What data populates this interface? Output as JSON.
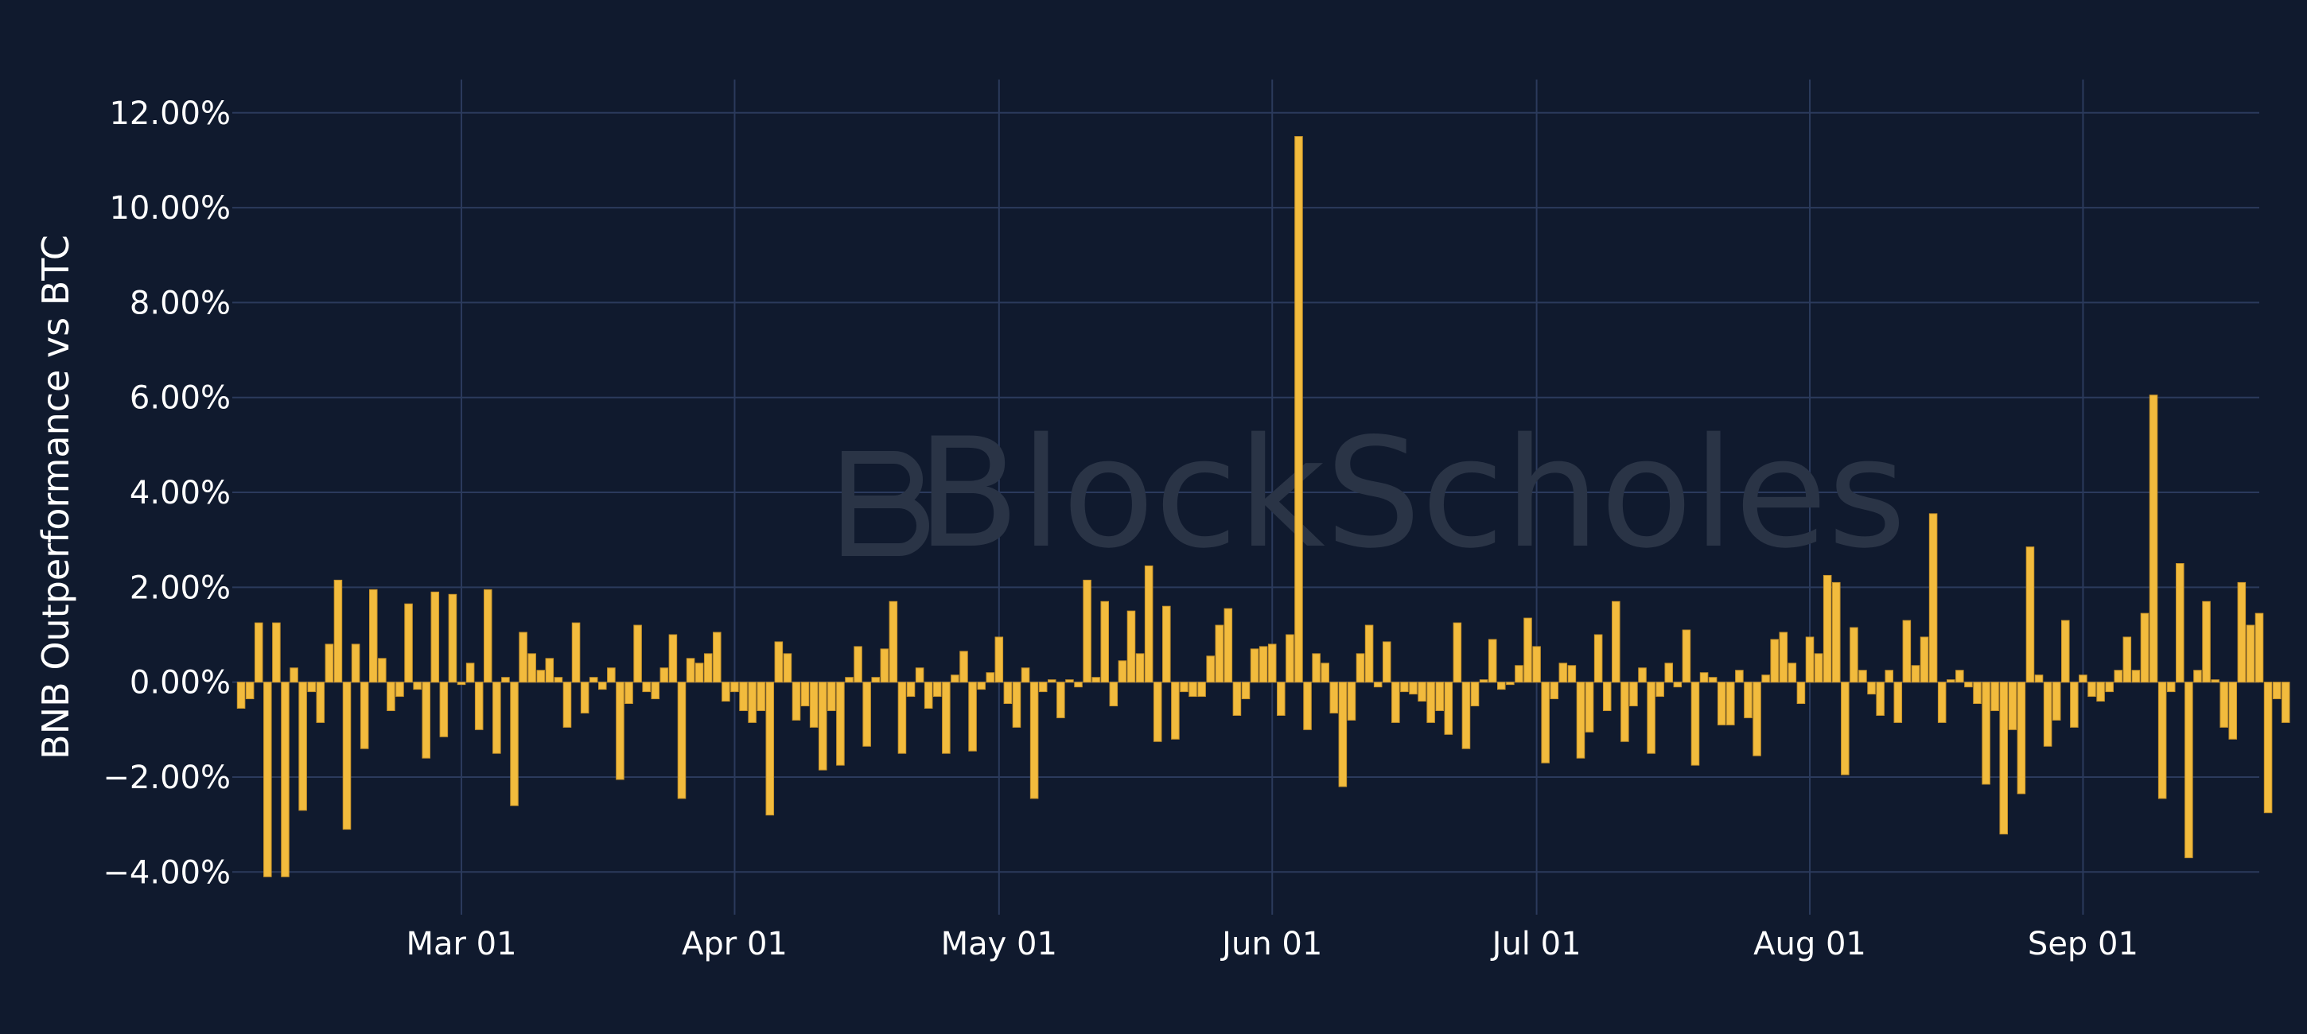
{
  "watermark": "BlockScholes",
  "colors": {
    "background": "#101a2e",
    "grid": "#2b3a5c",
    "bar": "#f2bb3d",
    "bar_edge": "#c9942a"
  },
  "chart_data": {
    "type": "bar",
    "title": "",
    "xlabel": "",
    "ylabel": "BNB Outperformance vs BTC",
    "ylim": [
      -4.9,
      12.7
    ],
    "yticks": [
      -4,
      -2,
      0,
      2,
      4,
      6,
      8,
      10,
      12
    ],
    "ytick_labels": [
      "−4.00%",
      "−2.00%",
      "0.00%",
      "2.00%",
      "4.00%",
      "6.00%",
      "8.00%",
      "10.00%",
      "12.00%"
    ],
    "xlim": [
      "2023-02-03",
      "2023-09-21"
    ],
    "xticks": [
      "2023-03-01",
      "2023-04-01",
      "2023-05-01",
      "2023-06-01",
      "2023-07-01",
      "2023-08-01",
      "2023-09-01"
    ],
    "xtick_labels": [
      "Mar 01",
      "Apr 01",
      "May 01",
      "Jun 01",
      "Jul 01",
      "Aug 01",
      "Sep 01"
    ],
    "grid": true,
    "x_start": "2023-02-04",
    "values": [
      -0.55,
      -0.35,
      1.25,
      -4.1,
      1.25,
      -4.1,
      0.3,
      -2.7,
      -0.2,
      -0.85,
      0.8,
      2.15,
      -3.1,
      0.8,
      -1.4,
      1.95,
      0.5,
      -0.6,
      -0.3,
      1.65,
      -0.15,
      -1.6,
      1.9,
      -1.15,
      1.85,
      -0.05,
      0.4,
      -1.0,
      1.95,
      -1.5,
      0.1,
      -2.6,
      1.05,
      0.6,
      0.25,
      0.5,
      0.1,
      -0.95,
      1.25,
      -0.65,
      0.1,
      -0.15,
      0.3,
      -2.05,
      -0.45,
      1.2,
      -0.2,
      -0.35,
      0.3,
      1.0,
      -2.45,
      0.5,
      0.4,
      0.6,
      1.05,
      -0.4,
      -0.2,
      -0.6,
      -0.85,
      -0.6,
      -2.8,
      0.85,
      0.6,
      -0.8,
      -0.5,
      -0.95,
      -1.85,
      -0.6,
      -1.75,
      0.1,
      0.75,
      -1.35,
      0.1,
      0.7,
      1.7,
      -1.5,
      -0.3,
      0.3,
      -0.55,
      -0.3,
      -1.5,
      0.15,
      0.65,
      -1.45,
      -0.15,
      0.2,
      0.95,
      -0.45,
      -0.95,
      0.3,
      -2.45,
      -0.2,
      0.05,
      -0.75,
      0.05,
      -0.1,
      2.15,
      0.1,
      1.7,
      -0.5,
      0.45,
      1.5,
      0.6,
      2.45,
      -1.25,
      1.6,
      -1.2,
      -0.2,
      -0.3,
      -0.3,
      0.55,
      1.2,
      1.55,
      -0.7,
      -0.35,
      0.7,
      0.75,
      0.8,
      -0.7,
      1.0,
      11.5,
      -1.0,
      0.6,
      0.4,
      -0.65,
      -2.2,
      -0.8,
      0.6,
      1.2,
      -0.1,
      0.85,
      -0.85,
      -0.2,
      -0.25,
      -0.4,
      -0.85,
      -0.6,
      -1.1,
      1.25,
      -1.4,
      -0.5,
      0.05,
      0.9,
      -0.15,
      -0.05,
      0.35,
      1.35,
      0.75,
      -1.7,
      -0.35,
      0.4,
      0.35,
      -1.6,
      -1.05,
      1.0,
      -0.6,
      1.7,
      -1.25,
      -0.5,
      0.3,
      -1.5,
      -0.3,
      0.4,
      -0.1,
      1.1,
      -1.75,
      0.2,
      0.1,
      -0.9,
      -0.9,
      0.25,
      -0.75,
      -1.55,
      0.15,
      0.9,
      1.05,
      0.4,
      -0.45,
      0.95,
      0.6,
      2.25,
      2.1,
      -1.95,
      1.15,
      0.25,
      -0.25,
      -0.7,
      0.25,
      -0.85,
      1.3,
      0.35,
      0.95,
      3.55,
      -0.85,
      0.05,
      0.25,
      -0.1,
      -0.45,
      -2.15,
      -0.6,
      -3.2,
      -1.0,
      -2.35,
      2.85,
      0.15,
      -1.35,
      -0.8,
      1.3,
      -0.95,
      0.15,
      -0.3,
      -0.4,
      -0.2,
      0.25,
      0.95,
      0.25,
      1.45,
      6.05,
      -2.45,
      -0.2,
      2.5,
      -3.7,
      0.25,
      1.7,
      0.05,
      -0.95,
      -1.2,
      2.1,
      1.2,
      1.45,
      -2.75,
      -0.35,
      -0.85
    ]
  }
}
